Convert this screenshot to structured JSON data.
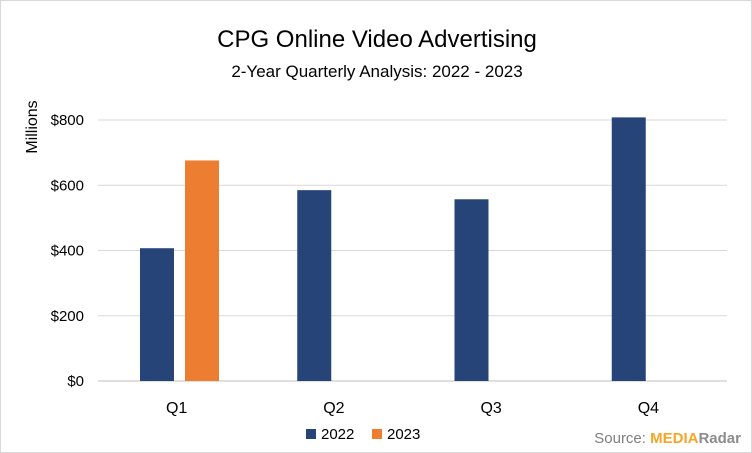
{
  "chart_data": {
    "type": "bar",
    "title": "CPG Online Video Advertising",
    "subtitle": "2-Year Quarterly Analysis: 2022 - 2023",
    "ylabel": "Millions",
    "xlabel": "",
    "categories": [
      "Q1",
      "Q2",
      "Q3",
      "Q4"
    ],
    "series": [
      {
        "name": "2022",
        "color": "#264478",
        "values": [
          407,
          585,
          557,
          808
        ]
      },
      {
        "name": "2023",
        "color": "#ed7d31",
        "values": [
          676,
          null,
          null,
          null
        ]
      }
    ],
    "ylim": [
      0,
      800
    ],
    "yticks": [
      0,
      200,
      400,
      600,
      800
    ],
    "ytick_labels": [
      "$0",
      "$200",
      "$400",
      "$600",
      "$800"
    ],
    "grid": true,
    "legend_position": "bottom"
  },
  "source": {
    "label": "Source:",
    "brand_part1": "MEDIA",
    "brand_part2": "Radar"
  }
}
